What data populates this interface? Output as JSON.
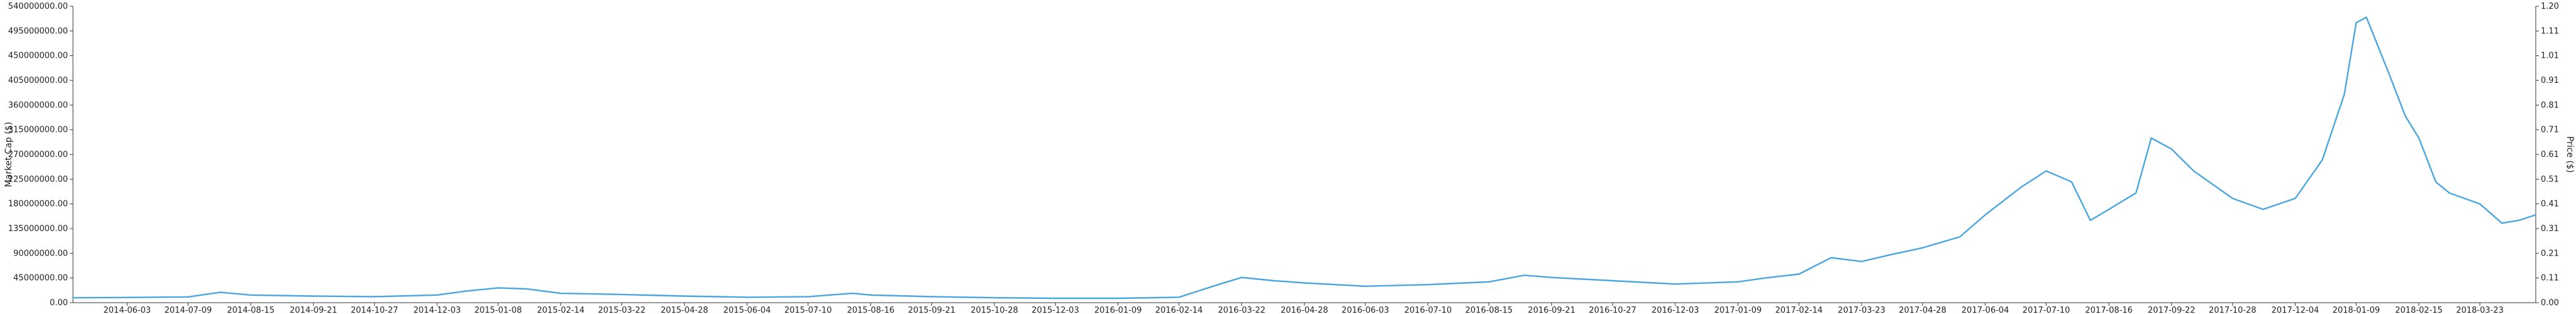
{
  "chart_data": {
    "type": "line",
    "left_axis": {
      "label": "Market Cap ($)",
      "ticks": [
        "0.00",
        "45000000.00",
        "90000000.00",
        "135000000.00",
        "180000000.00",
        "225000000.00",
        "270000000.00",
        "315000000.00",
        "360000000.00",
        "405000000.00",
        "450000000.00",
        "495000000.00",
        "540000000.00"
      ],
      "ylim": [
        0,
        540000000
      ]
    },
    "right_axis": {
      "label": "Price ($)",
      "ticks": [
        "0.00",
        "0.11",
        "0.21",
        "0.31",
        "0.41",
        "0.51",
        "0.61",
        "0.71",
        "0.81",
        "0.91",
        "1.01",
        "1.11",
        "1.20"
      ],
      "ylim": [
        0,
        1.2
      ]
    },
    "x_ticks": [
      "2014-06-03",
      "2014-07-09",
      "2014-08-15",
      "2014-09-21",
      "2014-10-27",
      "2014-12-03",
      "2015-01-08",
      "2015-02-14",
      "2015-03-22",
      "2015-04-28",
      "2015-06-04",
      "2015-07-10",
      "2015-08-16",
      "2015-09-21",
      "2015-10-28",
      "2015-12-03",
      "2016-01-09",
      "2016-02-14",
      "2016-03-22",
      "2016-04-28",
      "2016-06-03",
      "2016-07-10",
      "2016-08-15",
      "2016-09-21",
      "2016-10-27",
      "2016-12-03",
      "2017-01-09",
      "2017-02-14",
      "2017-03-23",
      "2017-04-28",
      "2017-06-04",
      "2017-07-10",
      "2017-08-16",
      "2017-09-22",
      "2017-10-28",
      "2017-12-04",
      "2018-01-09",
      "2018-02-15",
      "2018-03-23"
    ],
    "xlim": [
      "2014-05-02",
      "2018-04-25"
    ],
    "series": [
      {
        "color": "#4aa6df",
        "points": [
          [
            "2014-05-02",
            9000000
          ],
          [
            "2014-06-03",
            9500000
          ],
          [
            "2014-07-09",
            10500000
          ],
          [
            "2014-07-28",
            19000000
          ],
          [
            "2014-08-15",
            14000000
          ],
          [
            "2014-09-21",
            12000000
          ],
          [
            "2014-10-27",
            11000000
          ],
          [
            "2014-12-03",
            14000000
          ],
          [
            "2014-12-20",
            21000000
          ],
          [
            "2015-01-08",
            27000000
          ],
          [
            "2015-01-25",
            25000000
          ],
          [
            "2015-02-14",
            17000000
          ],
          [
            "2015-03-22",
            15000000
          ],
          [
            "2015-04-28",
            12000000
          ],
          [
            "2015-06-04",
            10000000
          ],
          [
            "2015-07-10",
            11000000
          ],
          [
            "2015-08-05",
            17000000
          ],
          [
            "2015-08-16",
            14000000
          ],
          [
            "2015-09-21",
            11000000
          ],
          [
            "2015-10-28",
            9000000
          ],
          [
            "2015-12-03",
            8000000
          ],
          [
            "2016-01-09",
            8000000
          ],
          [
            "2016-02-14",
            10000000
          ],
          [
            "2016-03-05",
            30000000
          ],
          [
            "2016-03-22",
            46000000
          ],
          [
            "2016-04-10",
            40000000
          ],
          [
            "2016-04-28",
            36000000
          ],
          [
            "2016-06-03",
            30000000
          ],
          [
            "2016-07-10",
            33000000
          ],
          [
            "2016-08-15",
            38000000
          ],
          [
            "2016-09-05",
            50000000
          ],
          [
            "2016-09-21",
            46000000
          ],
          [
            "2016-10-27",
            40000000
          ],
          [
            "2016-12-03",
            34000000
          ],
          [
            "2017-01-09",
            38000000
          ],
          [
            "2017-01-25",
            45000000
          ],
          [
            "2017-02-14",
            52000000
          ],
          [
            "2017-03-05",
            82000000
          ],
          [
            "2017-03-23",
            75000000
          ],
          [
            "2017-04-10",
            88000000
          ],
          [
            "2017-04-28",
            100000000
          ],
          [
            "2017-05-20",
            120000000
          ],
          [
            "2017-06-04",
            160000000
          ],
          [
            "2017-06-25",
            210000000
          ],
          [
            "2017-07-10",
            240000000
          ],
          [
            "2017-07-25",
            220000000
          ],
          [
            "2017-08-05",
            150000000
          ],
          [
            "2017-08-16",
            170000000
          ],
          [
            "2017-09-01",
            200000000
          ],
          [
            "2017-09-10",
            300000000
          ],
          [
            "2017-09-22",
            280000000
          ],
          [
            "2017-10-05",
            240000000
          ],
          [
            "2017-10-28",
            190000000
          ],
          [
            "2017-11-15",
            170000000
          ],
          [
            "2017-12-04",
            190000000
          ],
          [
            "2017-12-20",
            260000000
          ],
          [
            "2018-01-02",
            380000000
          ],
          [
            "2018-01-09",
            510000000
          ],
          [
            "2018-01-15",
            520000000
          ],
          [
            "2018-01-28",
            420000000
          ],
          [
            "2018-02-07",
            340000000
          ],
          [
            "2018-02-15",
            300000000
          ],
          [
            "2018-02-25",
            220000000
          ],
          [
            "2018-03-05",
            200000000
          ],
          [
            "2018-03-23",
            180000000
          ],
          [
            "2018-04-05",
            145000000
          ],
          [
            "2018-04-15",
            150000000
          ],
          [
            "2018-04-25",
            160000000
          ]
        ]
      }
    ]
  }
}
